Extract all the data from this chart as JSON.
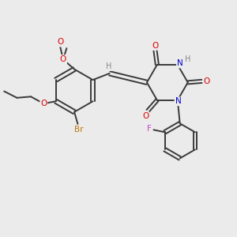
{
  "bg_color": "#ebebeb",
  "bond_color": "#3a3a3a",
  "atom_colors": {
    "O": "#dd0000",
    "N": "#0000cc",
    "Br": "#bb7700",
    "F": "#cc44cc",
    "H": "#888888",
    "C": "#3a3a3a"
  },
  "figsize": [
    3.0,
    3.0
  ],
  "dpi": 100
}
